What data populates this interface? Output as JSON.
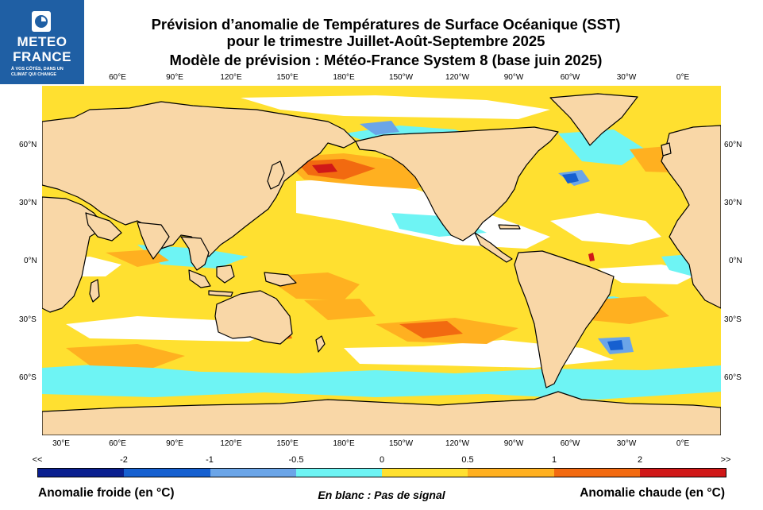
{
  "logo": {
    "brand_line1": "METEO",
    "brand_line2": "FRANCE",
    "tagline": "À VOS CÔTÉS, DANS UN CLIMAT QUI CHANGE",
    "bg_color": "#1f5fa4"
  },
  "title": {
    "line1": "Prévision d’anomalie de Températures de Surface Océanique (SST)",
    "line2": "pour le trimestre Juillet-Août-Septembre 2025",
    "line3": "Modèle de prévision : Météo-France System 8 (base juin 2025)"
  },
  "map": {
    "top_lon_labels": [
      "60°E",
      "90°E",
      "120°E",
      "150°E",
      "180°E",
      "150°W",
      "120°W",
      "90°W",
      "60°W",
      "30°W",
      "0°E"
    ],
    "bottom_lon_labels": [
      "30°E",
      "60°E",
      "90°E",
      "120°E",
      "150°E",
      "180°E",
      "150°W",
      "120°W",
      "90°W",
      "60°W",
      "30°W",
      "0°E"
    ],
    "left_lat_labels": [
      "60°N",
      "30°N",
      "0°N",
      "30°S",
      "60°S"
    ],
    "right_lat_labels": [
      "60°N",
      "30°N",
      "0°N",
      "30°S",
      "60°S"
    ],
    "ocean_background": "#ffe030",
    "land_color": "#f9d7a7",
    "coast_color": "#000000"
  },
  "legend": {
    "ticks": [
      "<<",
      "-2",
      "-1",
      "-0.5",
      "0",
      "0.5",
      "1",
      "2",
      ">>"
    ],
    "colors": [
      "#0a1f8f",
      "#1660d0",
      "#6ba5e8",
      "#6ef4f4",
      "#ffe030",
      "#ffb020",
      "#f26a10",
      "#d01818"
    ],
    "cold_label": "Anomalie froide (en °C)",
    "no_signal_label": "En blanc : Pas de signal",
    "hot_label": "Anomalie chaude (en °C)"
  }
}
